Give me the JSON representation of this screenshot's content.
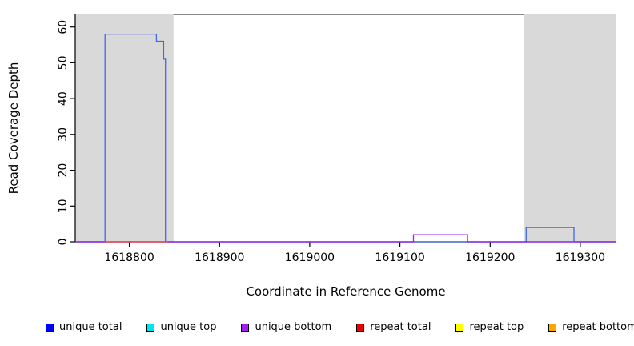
{
  "chart_data": {
    "type": "line",
    "title": "",
    "xlabel": "Coordinate in Reference Genome",
    "ylabel": "Read Coverage Depth",
    "xlim": [
      1618740,
      1619340
    ],
    "ylim": [
      0,
      63.5
    ],
    "xticks": [
      1618800,
      1618900,
      1619000,
      1619100,
      1619200,
      1619300
    ],
    "yticks": [
      0,
      10,
      20,
      30,
      40,
      50,
      60
    ],
    "grid": false,
    "legend_position": "bottom",
    "shaded_regions": [
      {
        "name": "repeat-region-left",
        "x0": 1618740,
        "x1": 1618849,
        "color": "#d9d9d9"
      },
      {
        "name": "repeat-region-right",
        "x0": 1619238,
        "x1": 1619340,
        "color": "#d9d9d9"
      }
    ],
    "top_border_segment": {
      "x0": 1618849,
      "x1": 1619238,
      "y": 63.5,
      "color": "#404040"
    },
    "series": [
      {
        "name": "unique total",
        "color": "#4169E1",
        "points": [
          [
            1618740,
            0
          ],
          [
            1618773,
            0
          ],
          [
            1618773,
            58
          ],
          [
            1618830,
            58
          ],
          [
            1618830,
            56
          ],
          [
            1618838,
            56
          ],
          [
            1618838,
            51
          ],
          [
            1618840,
            51
          ],
          [
            1618840,
            0
          ],
          [
            1619240,
            0
          ],
          [
            1619240,
            4
          ],
          [
            1619293,
            4
          ],
          [
            1619293,
            0
          ],
          [
            1619340,
            0
          ]
        ]
      },
      {
        "name": "unique bottom",
        "color": "#A020F0",
        "points": [
          [
            1618740,
            0
          ],
          [
            1619115,
            0
          ],
          [
            1619115,
            2
          ],
          [
            1619175,
            2
          ],
          [
            1619175,
            0
          ],
          [
            1619340,
            0
          ]
        ]
      },
      {
        "name": "repeat total",
        "color": "#FF4444",
        "points": [
          [
            1618773,
            0
          ],
          [
            1618843,
            0
          ]
        ]
      }
    ]
  },
  "legend": {
    "items": [
      {
        "label": "unique total",
        "color": "#0000FF"
      },
      {
        "label": "unique top",
        "color": "#00E5EE"
      },
      {
        "label": "unique bottom",
        "color": "#A020F0"
      },
      {
        "label": "repeat total",
        "color": "#EE0000"
      },
      {
        "label": "repeat top",
        "color": "#FFFF00"
      },
      {
        "label": "repeat bottom",
        "color": "#FFA500"
      }
    ]
  }
}
